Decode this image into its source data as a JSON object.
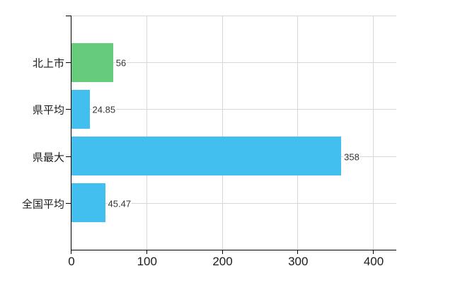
{
  "chart_data": {
    "type": "bar",
    "orientation": "horizontal",
    "title": "",
    "xlabel": "",
    "ylabel": "",
    "categories": [
      "北上市",
      "県平均",
      "県最大",
      "全国平均"
    ],
    "values": [
      56,
      24.85,
      358,
      45.47
    ],
    "x_ticks": [
      0,
      100,
      200,
      300,
      400
    ],
    "xlim": [
      0,
      431
    ],
    "grid": true,
    "legend": false,
    "bar_colors": [
      "#66cb7a",
      "#42bfee",
      "#42bfee",
      "#42bfee"
    ],
    "axis_color": "#000000",
    "grid_color": "#d7d7d7",
    "text_color": "#1b1b1b",
    "value_label_color": "#333333",
    "background": "#ffffff"
  }
}
